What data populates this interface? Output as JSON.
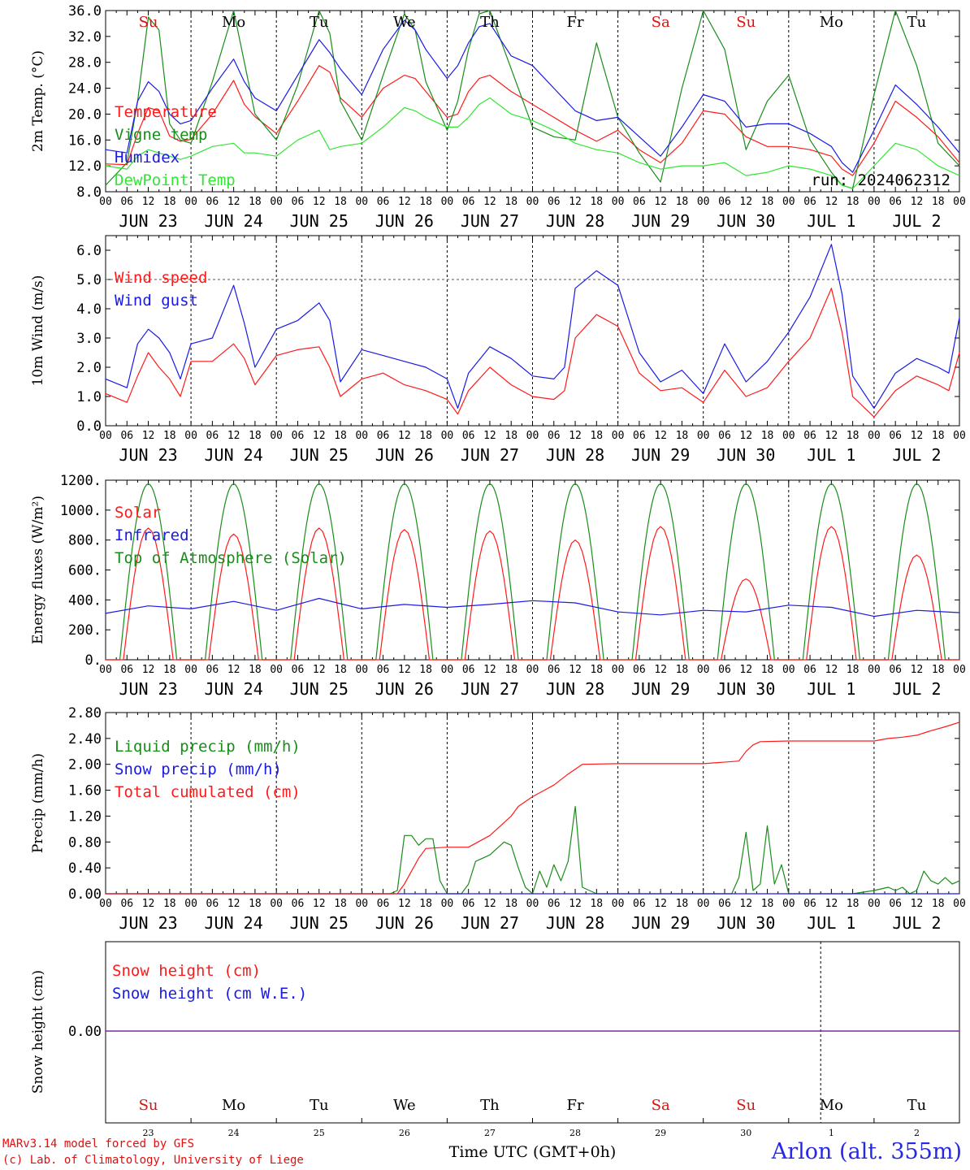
{
  "days": [
    {
      "weekday": "Su",
      "weekend": true,
      "date": "JUN 23",
      "day_num": "23"
    },
    {
      "weekday": "Mo",
      "weekend": false,
      "date": "JUN 24",
      "day_num": "24"
    },
    {
      "weekday": "Tu",
      "weekend": false,
      "date": "JUN 25",
      "day_num": "25"
    },
    {
      "weekday": "We",
      "weekend": false,
      "date": "JUN 26",
      "day_num": "26"
    },
    {
      "weekday": "Th",
      "weekend": false,
      "date": "JUN 27",
      "day_num": "27"
    },
    {
      "weekday": "Fr",
      "weekend": false,
      "date": "JUN 28",
      "day_num": "28"
    },
    {
      "weekday": "Sa",
      "weekend": true,
      "date": "JUN 29",
      "day_num": "29"
    },
    {
      "weekday": "Su",
      "weekend": true,
      "date": "JUN 30",
      "day_num": "30"
    },
    {
      "weekday": "Mo",
      "weekend": false,
      "date": "JUL  1",
      "day_num": "1"
    },
    {
      "weekday": "Tu",
      "weekend": false,
      "date": "JUL  2",
      "day_num": "2"
    }
  ],
  "hour_ticks": [
    "00",
    "06",
    "12",
    "18"
  ],
  "final_tick": "00",
  "x_title": "Time UTC (GMT+0h)",
  "run_label": "run: 2024062312",
  "credits": [
    "MARv3.14 model forced by GFS",
    "(c) Lab. of Climatology, University of Liege"
  ],
  "station": "Arlon (alt. 355m)",
  "colors": {
    "red": "#ff1a1a",
    "green": "#1a8c1a",
    "blue": "#1a1ae6",
    "lightgreen": "#33e633",
    "purple": "#7a2a9a",
    "weekend": "#e01010",
    "station": "#2727e6"
  },
  "chart_data": [
    {
      "type": "line",
      "title": "",
      "ylabel": "2m Temp. (°C)",
      "xlabel": "",
      "ylim": [
        8,
        36
      ],
      "yticks": [
        "8.0",
        "12.0",
        "16.0",
        "20.0",
        "24.0",
        "28.0",
        "32.0",
        "36.0"
      ],
      "grid": "dashed verticals at 00 UTC",
      "x_hours": [
        0,
        6,
        9,
        12,
        15,
        18,
        21,
        24,
        30,
        36,
        39,
        42,
        48,
        54,
        60,
        63,
        66,
        72,
        78,
        84,
        87,
        90,
        96,
        99,
        102,
        105,
        108,
        114,
        120,
        126,
        132,
        138,
        144,
        150,
        156,
        162,
        168,
        174,
        180,
        186,
        192,
        198,
        204,
        207,
        210,
        216,
        222,
        228,
        234,
        240
      ],
      "series": [
        {
          "name": "Temperature",
          "color": "red",
          "values": [
            12.3,
            12.2,
            17.0,
            21.0,
            20.5,
            16.6,
            15.8,
            16.1,
            20.0,
            25.2,
            21.5,
            19.6,
            17.0,
            22.0,
            27.5,
            26.5,
            22.5,
            19.5,
            24.0,
            26.0,
            25.5,
            23.5,
            19.5,
            20.0,
            23.5,
            25.5,
            26.0,
            23.5,
            21.5,
            19.5,
            17.5,
            15.8,
            17.5,
            14.5,
            12.5,
            15.5,
            20.5,
            20.0,
            16.5,
            15.0,
            15.0,
            14.5,
            13.5,
            11.5,
            10.5,
            15.5,
            22.0,
            19.5,
            16.5,
            12.5
          ]
        },
        {
          "name": "Vigne temp",
          "color": "green",
          "values": [
            9.0,
            12.5,
            22.0,
            35.0,
            33.0,
            18.5,
            16.0,
            15.5,
            25.0,
            36.0,
            28.0,
            20.0,
            16.0,
            24.5,
            36.0,
            32.5,
            22.0,
            16.0,
            26.0,
            35.5,
            33.0,
            25.0,
            17.5,
            22.0,
            30.0,
            35.5,
            36.0,
            27.0,
            18.0,
            16.5,
            16.0,
            31.0,
            19.5,
            14.0,
            9.5,
            24.0,
            36.0,
            30.0,
            14.5,
            22.0,
            26.0,
            16.0,
            11.0,
            9.0,
            8.5,
            23.0,
            36.0,
            27.5,
            15.5,
            12.0
          ]
        },
        {
          "name": "Humidex",
          "color": "blue",
          "values": [
            14.5,
            14.0,
            22.0,
            25.0,
            23.5,
            20.0,
            18.5,
            19.0,
            24.0,
            28.5,
            25.0,
            22.5,
            20.5,
            26.0,
            31.5,
            29.5,
            27.0,
            23.0,
            30.0,
            34.5,
            33.0,
            30.0,
            25.5,
            27.5,
            31.0,
            33.5,
            34.0,
            29.0,
            27.5,
            24.0,
            20.5,
            19.0,
            19.5,
            16.5,
            13.5,
            18.0,
            23.0,
            22.0,
            18.0,
            18.5,
            18.5,
            17.0,
            15.0,
            12.5,
            11.0,
            17.5,
            24.5,
            21.5,
            18.0,
            14.0
          ]
        },
        {
          "name": "DewPoint Temp",
          "color": "lightgreen",
          "values": [
            12.0,
            11.5,
            13.5,
            14.5,
            14.0,
            13.5,
            13.0,
            13.5,
            15.0,
            15.5,
            14.0,
            14.0,
            13.5,
            16.0,
            17.5,
            14.5,
            15.0,
            15.5,
            18.0,
            21.0,
            20.5,
            19.5,
            18.0,
            18.0,
            19.5,
            21.5,
            22.5,
            20.0,
            19.0,
            17.5,
            15.5,
            14.5,
            14.0,
            12.5,
            11.5,
            12.0,
            12.0,
            12.5,
            10.5,
            11.0,
            12.0,
            11.5,
            10.5,
            9.0,
            8.5,
            12.0,
            15.5,
            14.5,
            12.0,
            10.5
          ]
        }
      ],
      "legend": [
        "Temperature",
        "Vigne temp",
        "Humidex",
        "DewPoint Temp"
      ],
      "legend_placement": "top-left"
    },
    {
      "type": "line",
      "title": "",
      "ylabel": "10m Wind (m/s)",
      "xlabel": "",
      "ylim": [
        0,
        6.5
      ],
      "yticks": [
        "0.0",
        "1.0",
        "2.0",
        "3.0",
        "4.0",
        "5.0",
        "6.0"
      ],
      "reference_line": 5,
      "x_hours": [
        0,
        6,
        9,
        12,
        15,
        18,
        21,
        24,
        30,
        36,
        39,
        42,
        48,
        54,
        60,
        63,
        66,
        72,
        78,
        84,
        90,
        96,
        99,
        102,
        108,
        114,
        120,
        126,
        129,
        132,
        138,
        144,
        150,
        156,
        162,
        168,
        174,
        180,
        186,
        192,
        198,
        204,
        207,
        210,
        216,
        222,
        228,
        234,
        237,
        240
      ],
      "series": [
        {
          "name": "Wind speed",
          "color": "red",
          "values": [
            1.1,
            0.8,
            1.7,
            2.5,
            2.0,
            1.6,
            1.0,
            2.2,
            2.2,
            2.8,
            2.3,
            1.4,
            2.4,
            2.6,
            2.7,
            2.0,
            1.0,
            1.6,
            1.8,
            1.4,
            1.2,
            0.9,
            0.4,
            1.2,
            2.0,
            1.4,
            1.0,
            0.9,
            1.2,
            3.0,
            3.8,
            3.4,
            1.8,
            1.2,
            1.3,
            0.8,
            1.9,
            1.0,
            1.3,
            2.2,
            3.0,
            4.7,
            3.2,
            1.0,
            0.3,
            1.2,
            1.7,
            1.4,
            1.2,
            2.5
          ]
        },
        {
          "name": "Wind gust",
          "color": "blue",
          "values": [
            1.6,
            1.3,
            2.8,
            3.3,
            3.0,
            2.5,
            1.6,
            2.8,
            3.0,
            4.8,
            3.5,
            2.0,
            3.3,
            3.6,
            4.2,
            3.6,
            1.5,
            2.6,
            2.4,
            2.2,
            2.0,
            1.6,
            0.6,
            1.8,
            2.7,
            2.3,
            1.7,
            1.6,
            2.0,
            4.7,
            5.3,
            4.8,
            2.5,
            1.5,
            1.9,
            1.1,
            2.8,
            1.5,
            2.2,
            3.2,
            4.4,
            6.2,
            4.5,
            1.7,
            0.6,
            1.8,
            2.3,
            2.0,
            1.8,
            3.7
          ]
        }
      ],
      "legend": [
        "Wind speed",
        "Wind gust"
      ],
      "legend_placement": "top-left"
    },
    {
      "type": "line",
      "title": "",
      "ylabel": "Energy fluxes (W/m²)",
      "xlabel": "",
      "ylim": [
        0,
        1200
      ],
      "yticks": [
        "0.",
        "200.",
        "400.",
        "600.",
        "800.",
        "1000.",
        "1200."
      ],
      "toa_peak_wm2": 1175,
      "solar_peaks_wm2": [
        880,
        840,
        880,
        870,
        860,
        800,
        890,
        540,
        890,
        700
      ],
      "infrared_wm2": {
        "x_hours": [
          0,
          12,
          24,
          36,
          48,
          60,
          72,
          84,
          96,
          108,
          120,
          132,
          144,
          156,
          168,
          180,
          192,
          204,
          216,
          228,
          240
        ],
        "values": [
          310,
          360,
          340,
          390,
          330,
          410,
          340,
          370,
          350,
          370,
          395,
          380,
          320,
          300,
          330,
          320,
          365,
          350,
          290,
          330,
          315
        ]
      },
      "legend": [
        "Solar",
        "Infrared",
        "Top of Atmosphere (Solar)"
      ],
      "legend_placement": "top-left"
    },
    {
      "type": "line",
      "title": "",
      "ylabel": "Precip (mm/h)",
      "xlabel": "",
      "ylim": [
        0,
        2.8
      ],
      "yticks": [
        "0.00",
        "0.40",
        "0.80",
        "1.20",
        "1.60",
        "2.00",
        "2.40",
        "2.80"
      ],
      "series": [
        {
          "name": "Liquid precip (mm/h)",
          "color": "green",
          "x_hours": [
            0,
            80,
            82,
            84,
            86,
            88,
            90,
            92,
            94,
            96,
            100,
            102,
            104,
            106,
            108,
            110,
            112,
            114,
            116,
            118,
            120,
            122,
            124,
            126,
            128,
            130,
            132,
            134,
            136,
            138,
            140,
            160,
            176,
            178,
            180,
            182,
            184,
            186,
            188,
            190,
            192,
            210,
            216,
            220,
            222,
            224,
            226,
            228,
            230,
            232,
            234,
            236,
            238,
            240
          ],
          "values": [
            0,
            0,
            0.05,
            0.9,
            0.9,
            0.75,
            0.85,
            0.85,
            0.2,
            0,
            0,
            0.15,
            0.5,
            0.55,
            0.6,
            0.7,
            0.8,
            0.75,
            0.4,
            0.1,
            0,
            0.35,
            0.1,
            0.45,
            0.2,
            0.5,
            1.35,
            0.1,
            0.05,
            0,
            0,
            0,
            0,
            0.25,
            0.95,
            0.05,
            0.15,
            1.05,
            0.15,
            0.45,
            0,
            0,
            0.05,
            0.1,
            0.05,
            0.1,
            0,
            0.05,
            0.35,
            0.2,
            0.15,
            0.25,
            0.15,
            0.2
          ]
        },
        {
          "name": "Snow precip (mm/h)",
          "color": "blue",
          "x_hours": [
            0,
            240
          ],
          "values": [
            0,
            0
          ]
        },
        {
          "name": "Total cumulated (cm)",
          "color": "red",
          "x_hours": [
            0,
            82,
            84,
            86,
            88,
            90,
            96,
            102,
            108,
            112,
            114,
            116,
            120,
            124,
            126,
            130,
            134,
            144,
            156,
            168,
            178,
            180,
            182,
            184,
            192,
            204,
            216,
            220,
            224,
            228,
            232,
            236,
            240
          ],
          "values": [
            0,
            0,
            0.15,
            0.35,
            0.55,
            0.7,
            0.72,
            0.72,
            0.9,
            1.1,
            1.2,
            1.35,
            1.5,
            1.62,
            1.68,
            1.85,
            2.0,
            2.01,
            2.01,
            2.01,
            2.05,
            2.2,
            2.3,
            2.35,
            2.36,
            2.36,
            2.36,
            2.4,
            2.42,
            2.45,
            2.52,
            2.58,
            2.65
          ]
        }
      ],
      "legend": [
        "Liquid precip (mm/h)",
        "Snow precip (mm/h)",
        "Total cumulated (cm)"
      ],
      "legend_placement": "top-left"
    },
    {
      "type": "line",
      "title": "",
      "ylabel": "Snow height (cm)",
      "xlabel": "Time UTC (GMT+0h)",
      "yticks": [
        "0.00"
      ],
      "series": [
        {
          "name": "Snow height (cm)",
          "color": "red",
          "values": [
            0,
            0
          ]
        },
        {
          "name": "Snow height (cm W.E.)",
          "color": "blue",
          "values": [
            0,
            0
          ]
        }
      ],
      "legend": [
        "Snow height (cm)",
        "Snow height (cm W.E.)"
      ],
      "legend_placement": "top-left"
    }
  ]
}
